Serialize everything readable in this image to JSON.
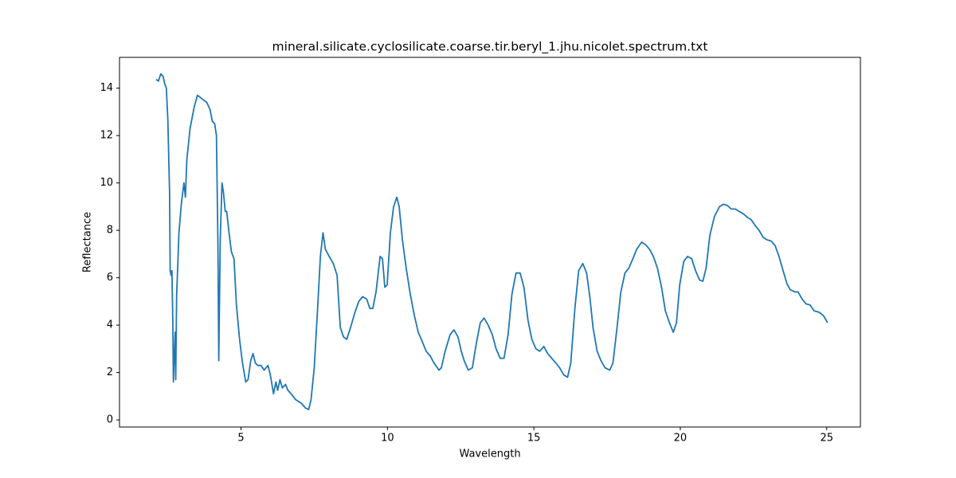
{
  "chart_data": {
    "type": "line",
    "title": "mineral.silicate.cyclosilicate.coarse.tir.beryl_1.jhu.nicolet.spectrum.txt",
    "x_label": "Wavelength",
    "y_label": "Reflectance",
    "color": "#1f77b4",
    "x": [
      2.1,
      2.18,
      2.26,
      2.34,
      2.39,
      2.45,
      2.5,
      2.56,
      2.58,
      2.61,
      2.64,
      2.67,
      2.69,
      2.75,
      2.77,
      2.8,
      2.88,
      2.96,
      3.05,
      3.1,
      3.15,
      3.21,
      3.26,
      3.4,
      3.51,
      3.62,
      3.72,
      3.83,
      3.94,
      4.02,
      4.1,
      4.16,
      4.21,
      4.24,
      4.29,
      4.35,
      4.4,
      4.46,
      4.51,
      4.59,
      4.67,
      4.76,
      4.84,
      4.95,
      5.05,
      5.16,
      5.24,
      5.33,
      5.41,
      5.49,
      5.57,
      5.68,
      5.79,
      5.92,
      6.0,
      6.11,
      6.19,
      6.25,
      6.33,
      6.41,
      6.52,
      6.6,
      6.71,
      6.87,
      7.06,
      7.2,
      7.31,
      7.39,
      7.5,
      7.61,
      7.71,
      7.8,
      7.88,
      8.01,
      8.15,
      8.28,
      8.39,
      8.5,
      8.61,
      8.74,
      8.88,
      9.02,
      9.15,
      9.29,
      9.4,
      9.5,
      9.61,
      9.75,
      9.83,
      9.91,
      9.99,
      10.1,
      10.21,
      10.32,
      10.4,
      10.51,
      10.64,
      10.78,
      10.92,
      11.05,
      11.19,
      11.32,
      11.46,
      11.59,
      11.76,
      11.84,
      11.97,
      12.14,
      12.27,
      12.41,
      12.52,
      12.62,
      12.76,
      12.9,
      13.03,
      13.17,
      13.3,
      13.44,
      13.58,
      13.71,
      13.85,
      13.98,
      14.12,
      14.25,
      14.39,
      14.53,
      14.66,
      14.8,
      14.93,
      15.07,
      15.2,
      15.34,
      15.47,
      15.61,
      15.75,
      15.88,
      16.02,
      16.15,
      16.26,
      16.4,
      16.53,
      16.67,
      16.8,
      16.91,
      17.02,
      17.16,
      17.29,
      17.43,
      17.59,
      17.7,
      17.84,
      17.97,
      18.11,
      18.24,
      18.38,
      18.51,
      18.68,
      18.81,
      18.95,
      19.08,
      19.22,
      19.36,
      19.49,
      19.63,
      19.76,
      19.87,
      19.98,
      20.12,
      20.25,
      20.39,
      20.52,
      20.66,
      20.77,
      20.88,
      21.01,
      21.17,
      21.34,
      21.47,
      21.61,
      21.74,
      21.88,
      22.01,
      22.15,
      22.29,
      22.42,
      22.56,
      22.69,
      22.83,
      22.96,
      23.1,
      23.24,
      23.37,
      23.51,
      23.64,
      23.75,
      23.91,
      24.02,
      24.16,
      24.29,
      24.43,
      24.57,
      24.73,
      24.89,
      25.03
    ],
    "values": [
      14.37,
      14.3,
      14.6,
      14.5,
      14.2,
      14.0,
      12.7,
      9.6,
      6.3,
      6.1,
      6.3,
      4.2,
      1.6,
      3.7,
      1.7,
      5.2,
      7.9,
      9.1,
      10.0,
      9.4,
      11.0,
      11.7,
      12.3,
      13.2,
      13.7,
      13.6,
      13.5,
      13.4,
      13.1,
      12.6,
      12.5,
      12.0,
      7.6,
      2.5,
      7.6,
      10.0,
      9.6,
      8.8,
      8.8,
      7.9,
      7.1,
      6.8,
      4.9,
      3.4,
      2.4,
      1.6,
      1.7,
      2.5,
      2.8,
      2.4,
      2.3,
      2.3,
      2.1,
      2.3,
      1.9,
      1.1,
      1.6,
      1.25,
      1.7,
      1.35,
      1.5,
      1.25,
      1.1,
      0.85,
      0.7,
      0.5,
      0.44,
      0.85,
      2.2,
      4.6,
      6.9,
      7.9,
      7.2,
      6.9,
      6.6,
      6.1,
      3.9,
      3.5,
      3.4,
      3.9,
      4.5,
      5.0,
      5.2,
      5.1,
      4.7,
      4.7,
      5.4,
      6.9,
      6.8,
      5.6,
      5.7,
      7.9,
      9.0,
      9.4,
      9.0,
      7.6,
      6.4,
      5.3,
      4.4,
      3.7,
      3.3,
      2.9,
      2.7,
      2.4,
      2.1,
      2.2,
      2.9,
      3.6,
      3.8,
      3.5,
      2.9,
      2.5,
      2.1,
      2.2,
      3.2,
      4.1,
      4.3,
      4.0,
      3.6,
      3.0,
      2.6,
      2.6,
      3.6,
      5.3,
      6.2,
      6.2,
      5.6,
      4.2,
      3.4,
      3.0,
      2.9,
      3.1,
      2.8,
      2.6,
      2.4,
      2.2,
      1.9,
      1.8,
      2.4,
      4.7,
      6.3,
      6.6,
      6.2,
      5.2,
      3.9,
      2.9,
      2.5,
      2.2,
      2.1,
      2.4,
      3.9,
      5.4,
      6.2,
      6.4,
      6.8,
      7.2,
      7.5,
      7.4,
      7.2,
      6.9,
      6.4,
      5.6,
      4.6,
      4.1,
      3.7,
      4.1,
      5.7,
      6.7,
      6.9,
      6.8,
      6.3,
      5.9,
      5.85,
      6.4,
      7.8,
      8.6,
      9.0,
      9.1,
      9.05,
      8.9,
      8.9,
      8.8,
      8.7,
      8.55,
      8.45,
      8.2,
      8.0,
      7.7,
      7.6,
      7.55,
      7.35,
      6.9,
      6.3,
      5.75,
      5.5,
      5.4,
      5.4,
      5.1,
      4.9,
      4.85,
      4.6,
      4.55,
      4.4,
      4.1
    ],
    "xlim": [
      0.85,
      26.15
    ],
    "ylim": [
      -0.3,
      15.3
    ],
    "xticks": [
      5,
      10,
      15,
      20,
      25
    ],
    "yticks": [
      0,
      2,
      4,
      6,
      8,
      10,
      12,
      14
    ],
    "grid": false
  }
}
